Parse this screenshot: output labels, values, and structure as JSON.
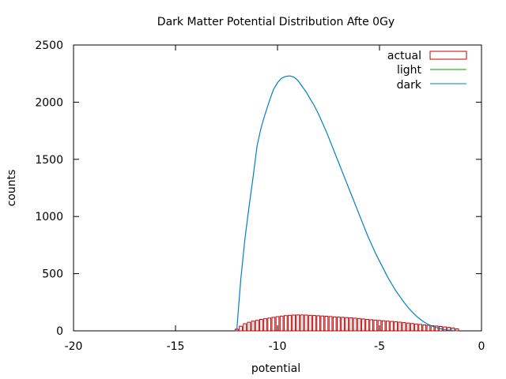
{
  "chart_data": {
    "type": "bar",
    "title": "Dark Matter Potential Distribution Afte 0Gy",
    "xlabel": "potential",
    "ylabel": "counts",
    "xlim": [
      -20,
      0
    ],
    "ylim": [
      0,
      2500
    ],
    "xticks": [
      -20,
      -15,
      -10,
      -5,
      0
    ],
    "yticks": [
      0,
      500,
      1000,
      1500,
      2000,
      2500
    ],
    "grid": false,
    "legend_position": "top-right",
    "series": [
      {
        "name": "actual",
        "style": "histogram",
        "color": "#c00000",
        "x": [
          -12.0,
          -11.8,
          -11.6,
          -11.4,
          -11.2,
          -11.0,
          -10.8,
          -10.6,
          -10.4,
          -10.2,
          -10.0,
          -9.8,
          -9.6,
          -9.4,
          -9.2,
          -9.0,
          -8.8,
          -8.6,
          -8.4,
          -8.2,
          -8.0,
          -7.8,
          -7.6,
          -7.4,
          -7.2,
          -7.0,
          -6.8,
          -6.6,
          -6.4,
          -6.2,
          -6.0,
          -5.8,
          -5.6,
          -5.4,
          -5.2,
          -5.0,
          -4.8,
          -4.6,
          -4.4,
          -4.2,
          -4.0,
          -3.8,
          -3.6,
          -3.4,
          -3.2,
          -3.0,
          -2.8,
          -2.6,
          -2.4,
          -2.2,
          -2.0,
          -1.8,
          -1.6,
          -1.4,
          -1.2
        ],
        "values": [
          15,
          40,
          62,
          75,
          85,
          92,
          100,
          106,
          112,
          118,
          124,
          129,
          133,
          136,
          138,
          139,
          139,
          138,
          136,
          134,
          132,
          130,
          128,
          125,
          122,
          120,
          118,
          116,
          114,
          111,
          108,
          104,
          100,
          97,
          94,
          91,
          88,
          85,
          82,
          79,
          76,
          72,
          68,
          64,
          60,
          56,
          52,
          48,
          45,
          42,
          38,
          34,
          30,
          25,
          18
        ]
      },
      {
        "name": "light",
        "style": "line",
        "color": "#00a000",
        "x": [],
        "values": []
      },
      {
        "name": "dark",
        "style": "line",
        "color": "#0080c0",
        "x": [
          -12.0,
          -11.8,
          -11.6,
          -11.4,
          -11.2,
          -11.0,
          -10.8,
          -10.6,
          -10.4,
          -10.2,
          -10.0,
          -9.8,
          -9.6,
          -9.4,
          -9.2,
          -9.0,
          -8.8,
          -8.6,
          -8.4,
          -8.2,
          -8.0,
          -7.8,
          -7.6,
          -7.4,
          -7.2,
          -7.0,
          -6.8,
          -6.6,
          -6.4,
          -6.2,
          -6.0,
          -5.8,
          -5.6,
          -5.4,
          -5.2,
          -5.0,
          -4.8,
          -4.6,
          -4.4,
          -4.2,
          -4.0,
          -3.8,
          -3.6,
          -3.4,
          -3.2,
          -3.0,
          -2.8,
          -2.6,
          -2.4,
          -2.2,
          -2.0,
          -1.8,
          -1.6,
          -1.4,
          -1.2
        ],
        "values": [
          0,
          450,
          800,
          1080,
          1340,
          1620,
          1780,
          1900,
          2010,
          2110,
          2170,
          2210,
          2225,
          2230,
          2220,
          2190,
          2140,
          2090,
          2030,
          1970,
          1900,
          1820,
          1740,
          1650,
          1560,
          1470,
          1380,
          1290,
          1200,
          1110,
          1020,
          930,
          840,
          760,
          680,
          610,
          540,
          470,
          410,
          350,
          300,
          250,
          205,
          165,
          130,
          100,
          75,
          55,
          40,
          28,
          18,
          10,
          6,
          3,
          1
        ]
      }
    ]
  }
}
